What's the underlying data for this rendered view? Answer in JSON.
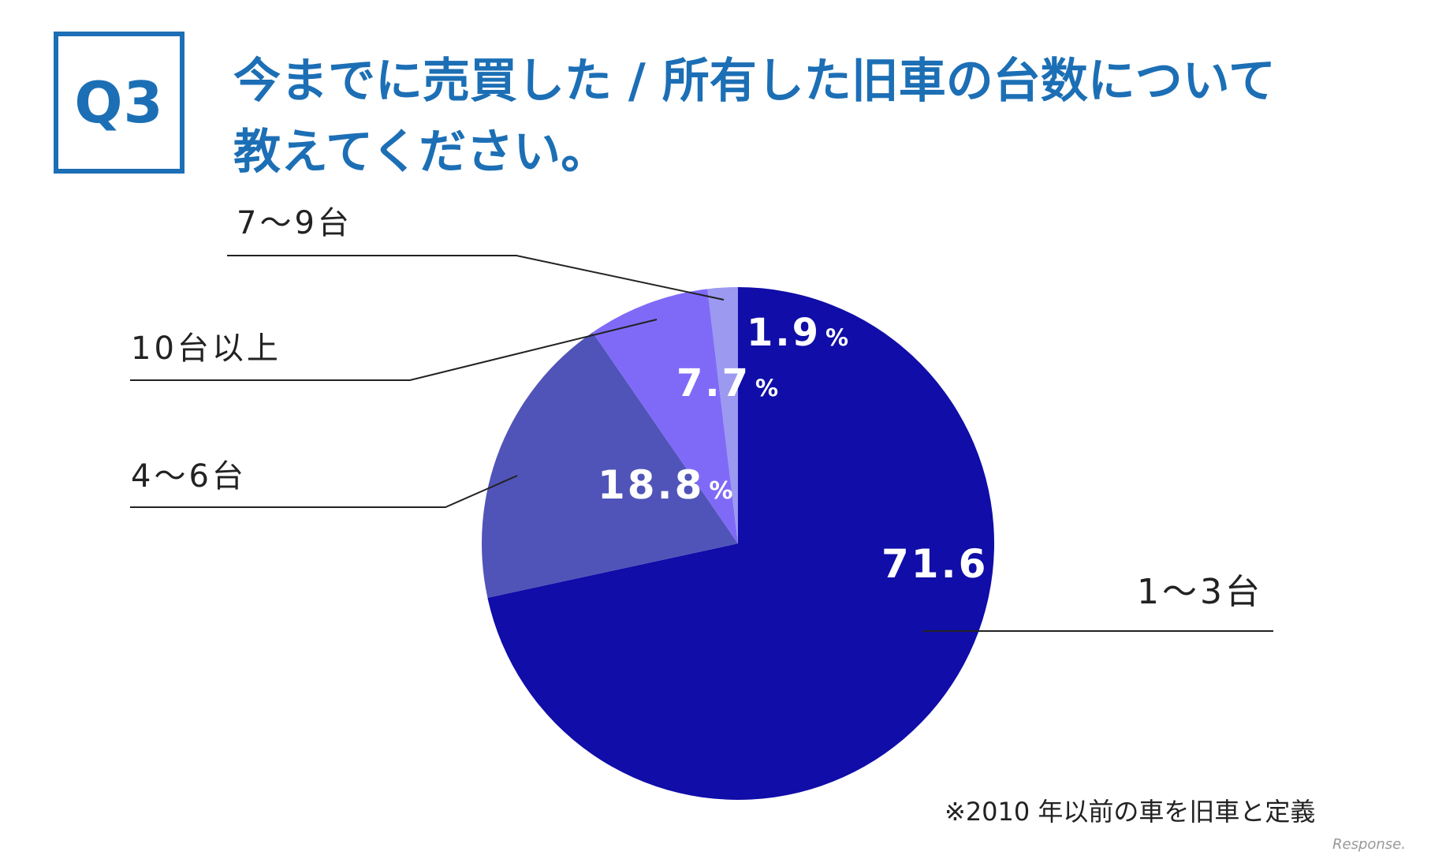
{
  "question_badge": "Q3",
  "title_line1": "今までに売買した / 所有した旧車の台数について",
  "title_line2": "教えてください。",
  "footnote": "※2010 年以前の車を旧車と定義",
  "watermark": "Response.",
  "colors": {
    "accent": "#1c6fb5",
    "slice_1_3": "#100da8",
    "slice_4_6": "#5054b8",
    "slice_10_plus": "#7f6af8",
    "slice_7_9": "#9b99f0"
  },
  "chart_data": {
    "type": "pie",
    "start": "12 o'clock",
    "direction": "clockwise",
    "slices": [
      {
        "label": "1〜3台",
        "value": 71.6,
        "display": "71.6",
        "unit": "%"
      },
      {
        "label": "4〜6台",
        "value": 18.8,
        "display": "18.8",
        "unit": "%"
      },
      {
        "label": "10台以上",
        "value": 7.7,
        "display": "7.7",
        "unit": "%"
      },
      {
        "label": "7〜9台",
        "value": 1.9,
        "display": "1.9",
        "unit": "%"
      }
    ]
  }
}
